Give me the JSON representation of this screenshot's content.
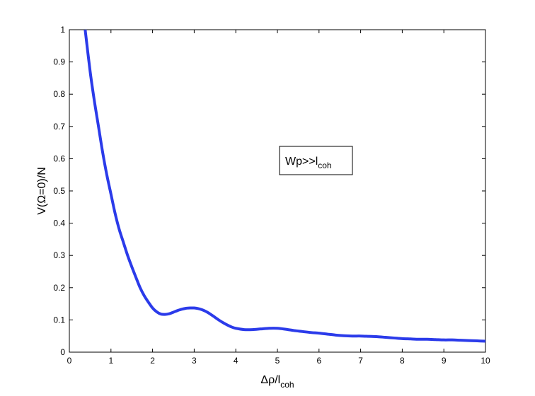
{
  "chart_data": {
    "type": "line",
    "title": "",
    "xlabel": {
      "main": "Δρ/l",
      "sub": "coh"
    },
    "ylabel": "V(Ω=0)/N",
    "xlim": [
      0,
      10
    ],
    "ylim": [
      0,
      1
    ],
    "xticks": [
      0,
      1,
      2,
      3,
      4,
      5,
      6,
      7,
      8,
      9,
      10
    ],
    "yticks": [
      0,
      0.1,
      0.2,
      0.3,
      0.4,
      0.5,
      0.6,
      0.7,
      0.8,
      0.9,
      1
    ],
    "xtick_labels": [
      "0",
      "1",
      "2",
      "3",
      "4",
      "5",
      "6",
      "7",
      "8",
      "9",
      "10"
    ],
    "ytick_labels": [
      "0",
      "0.1",
      "0.2",
      "0.3",
      "0.4",
      "0.5",
      "0.6",
      "0.7",
      "0.8",
      "0.9",
      "1"
    ],
    "grid": false,
    "line_color": "#2b3bea",
    "annotation": {
      "main": "Wp>>l",
      "sub": "coh"
    },
    "series": [
      {
        "x": [
          0.38,
          0.5,
          0.6,
          0.7,
          0.8,
          0.9,
          1.0,
          1.1,
          1.2,
          1.3,
          1.4,
          1.5,
          1.6,
          1.7,
          1.8,
          1.9,
          2.0,
          2.1,
          2.2,
          2.3,
          2.4,
          2.5,
          2.6,
          2.7,
          2.8,
          2.9,
          3.0,
          3.1,
          3.2,
          3.3,
          3.4,
          3.5,
          3.6,
          3.7,
          3.8,
          3.9,
          4.0,
          4.2,
          4.4,
          4.6,
          4.8,
          5.0,
          5.2,
          5.4,
          5.6,
          5.8,
          6.0,
          6.2,
          6.4,
          6.6,
          6.8,
          7.0,
          7.2,
          7.4,
          7.6,
          7.8,
          8.0,
          8.2,
          8.4,
          8.6,
          8.8,
          9.0,
          9.2,
          9.4,
          9.6,
          9.8,
          10.0
        ],
        "y": [
          1.0,
          0.87,
          0.78,
          0.7,
          0.62,
          0.55,
          0.49,
          0.43,
          0.38,
          0.34,
          0.3,
          0.265,
          0.232,
          0.2,
          0.175,
          0.155,
          0.137,
          0.125,
          0.118,
          0.117,
          0.119,
          0.124,
          0.129,
          0.133,
          0.136,
          0.137,
          0.137,
          0.135,
          0.131,
          0.125,
          0.117,
          0.108,
          0.099,
          0.091,
          0.084,
          0.078,
          0.074,
          0.07,
          0.07,
          0.072,
          0.074,
          0.074,
          0.071,
          0.067,
          0.064,
          0.061,
          0.059,
          0.056,
          0.053,
          0.051,
          0.05,
          0.05,
          0.049,
          0.048,
          0.046,
          0.044,
          0.042,
          0.041,
          0.04,
          0.04,
          0.039,
          0.038,
          0.038,
          0.037,
          0.036,
          0.035,
          0.034
        ]
      }
    ]
  }
}
